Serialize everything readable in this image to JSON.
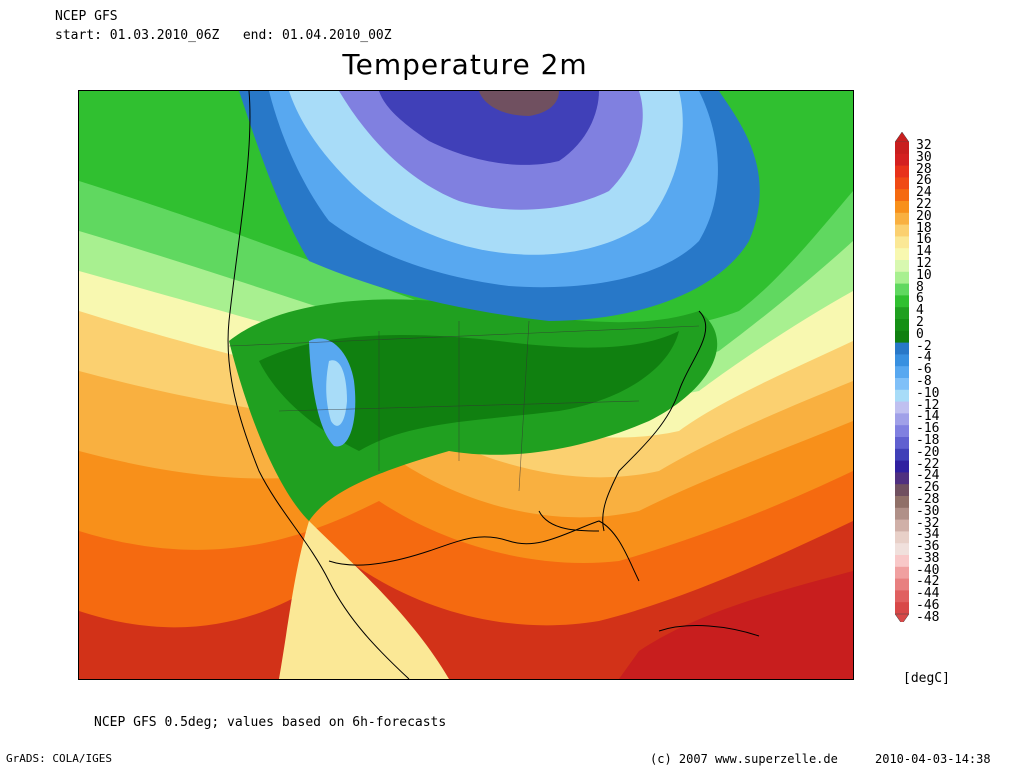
{
  "header": {
    "model": "NCEP GFS",
    "start_label": "start:",
    "start_value": "01.03.2010_06Z",
    "end_label": "end:",
    "end_value": "01.04.2010_00Z"
  },
  "title": "Temperature 2m",
  "colorbar": {
    "unit": "[degC]",
    "labels": [
      "32",
      "30",
      "28",
      "26",
      "24",
      "22",
      "20",
      "18",
      "16",
      "14",
      "12",
      "10",
      "8",
      "6",
      "4",
      "2",
      "0",
      "-2",
      "-4",
      "-6",
      "-8",
      "-10",
      "-12",
      "-14",
      "-16",
      "-18",
      "-20",
      "-22",
      "-24",
      "-26",
      "-28",
      "-30",
      "-32",
      "-34",
      "-36",
      "-38",
      "-40",
      "-42",
      "-44",
      "-46",
      "-48"
    ],
    "colors": [
      "#c81e1e",
      "#d42020",
      "#e8321a",
      "#f04a14",
      "#f56a10",
      "#f8901a",
      "#f9b040",
      "#fbd070",
      "#fbe896",
      "#f8f8b0",
      "#d8f8b0",
      "#a8f090",
      "#60d860",
      "#30c030",
      "#20a020",
      "#159015",
      "#108010",
      "#2878c8",
      "#3890e0",
      "#58a8f0",
      "#80c0f8",
      "#a8dcf8",
      "#c0c0f0",
      "#a0a0e8",
      "#8080e0",
      "#6060d0",
      "#4040b8",
      "#3020a0",
      "#503080",
      "#705060",
      "#907068",
      "#b09088",
      "#d0b0a8",
      "#e8d0c8",
      "#f0e0dc",
      "#f8c8c8",
      "#f0a0a0",
      "#e88080",
      "#e06060",
      "#d84848"
    ]
  },
  "footer": {
    "note": "NCEP GFS 0.5deg; values based on 6h-forecasts",
    "software": "GrADS: COLA/IGES",
    "copyright": "(c) 2007 www.superzelle.de",
    "timestamp": "2010-04-03-14:38"
  }
}
